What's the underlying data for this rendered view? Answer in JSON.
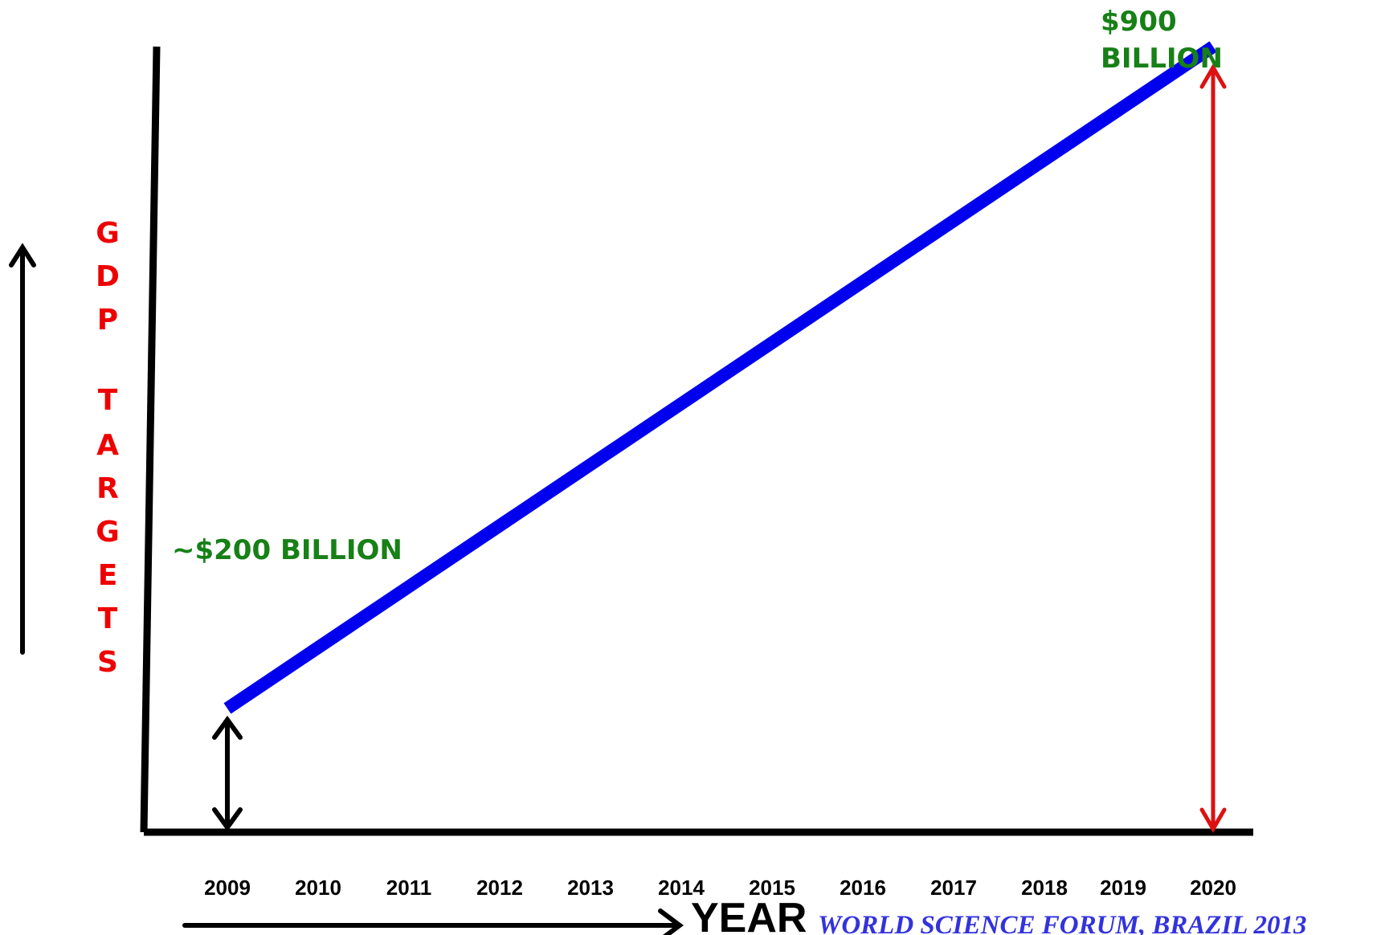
{
  "chart_data": {
    "type": "line",
    "categories": [
      "2009",
      "2010",
      "2011",
      "2012",
      "2013",
      "2014",
      "2015",
      "2016",
      "2017",
      "2018",
      "2019",
      "2020"
    ],
    "series": [
      {
        "values": [
          200,
          null,
          null,
          null,
          null,
          null,
          null,
          null,
          null,
          null,
          null,
          900
        ]
      }
    ],
    "ylabel": "GDP TARGETS",
    "ylabel_letters": [
      "G",
      "D",
      "P",
      "T",
      "A",
      "R",
      "G",
      "E",
      "T",
      "S"
    ],
    "xlabel": "YEAR",
    "ylim": [
      0,
      900
    ],
    "grid": false,
    "annotations": {
      "start": "~$200 BILLION",
      "end_line1": "$900",
      "end_line2": "BILLION"
    },
    "credit": "WORLD SCIENCE FORUM, BRAZIL  2013"
  },
  "colors": {
    "line": "#0000ee",
    "ylabel": "#ee0000",
    "annotation": "#178017",
    "end_arrow": "#dd1111",
    "start_arrow": "#000000",
    "axes": "#000000",
    "credit": "#3333dd"
  }
}
